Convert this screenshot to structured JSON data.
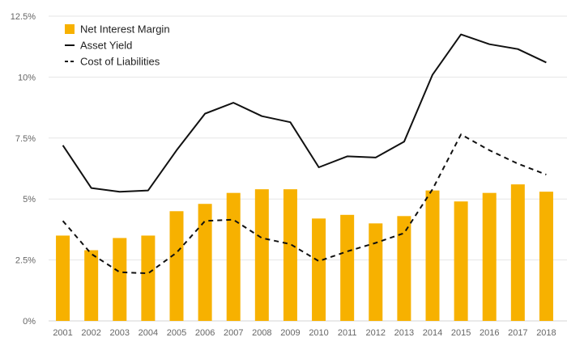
{
  "chart_data": {
    "type": "bar",
    "categories": [
      "2001",
      "2002",
      "2003",
      "2004",
      "2005",
      "2006",
      "2007",
      "2008",
      "2009",
      "2010",
      "2011",
      "2012",
      "2013",
      "2014",
      "2015",
      "2016",
      "2017",
      "2018"
    ],
    "series": [
      {
        "name": "Net Interest Margin",
        "type": "bar",
        "color": "#F7B100",
        "values": [
          3.5,
          2.9,
          3.4,
          3.5,
          4.5,
          4.8,
          5.25,
          5.4,
          5.4,
          4.2,
          4.35,
          4.0,
          4.3,
          5.35,
          4.9,
          5.25,
          5.6,
          5.3
        ]
      },
      {
        "name": "Asset Yield",
        "type": "line",
        "style": "solid",
        "color": "#111111",
        "values": [
          7.2,
          5.45,
          5.3,
          5.35,
          7.0,
          8.5,
          8.95,
          8.4,
          8.15,
          6.3,
          6.75,
          6.7,
          7.35,
          10.1,
          11.75,
          11.35,
          11.15,
          10.6
        ]
      },
      {
        "name": "Cost of Liabilities",
        "type": "line",
        "style": "dashed",
        "color": "#111111",
        "values": [
          4.1,
          2.75,
          2.0,
          1.95,
          2.8,
          4.1,
          4.15,
          3.4,
          3.15,
          2.45,
          2.85,
          3.2,
          3.6,
          5.4,
          7.65,
          7.0,
          6.45,
          6.0
        ]
      }
    ],
    "y_ticks": [
      {
        "value": 0,
        "label": "0%"
      },
      {
        "value": 2.5,
        "label": "2.5%"
      },
      {
        "value": 5,
        "label": "5%"
      },
      {
        "value": 7.5,
        "label": "7.5%"
      },
      {
        "value": 10,
        "label": "10%"
      },
      {
        "value": 12.5,
        "label": "12.5%"
      }
    ],
    "ylim": [
      0,
      12.5
    ],
    "grid": true,
    "legend_position": "top-left",
    "title": "",
    "xlabel": "",
    "ylabel": ""
  }
}
